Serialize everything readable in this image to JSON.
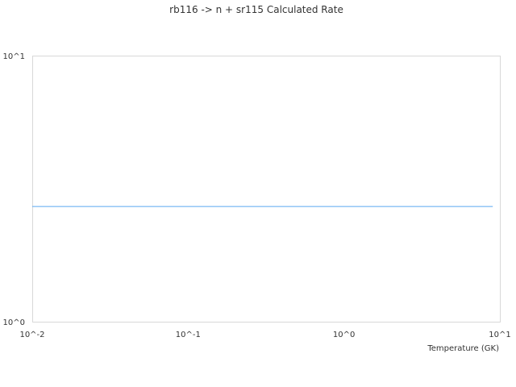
{
  "chart_data": {
    "type": "line",
    "title": "rb116 -> n + sr115 Calculated Rate",
    "xlabel": "Temperature (GK)",
    "ylabel": "",
    "x_scale": "log",
    "y_scale": "log",
    "xlim": [
      0.01,
      10
    ],
    "ylim": [
      1,
      10
    ],
    "x_ticks": [
      {
        "value": 0.01,
        "label": "10^-2"
      },
      {
        "value": 0.1,
        "label": "10^-1"
      },
      {
        "value": 1,
        "label": "10^0"
      },
      {
        "value": 10,
        "label": "10^1"
      }
    ],
    "y_ticks": [
      {
        "value": 1,
        "label": "10^0"
      },
      {
        "value": 10,
        "label": "10^1"
      }
    ],
    "grid": false,
    "series": [
      {
        "color": "#5aa9f0",
        "x": [
          0.01,
          9
        ],
        "y": [
          2.71,
          2.71
        ]
      }
    ]
  }
}
